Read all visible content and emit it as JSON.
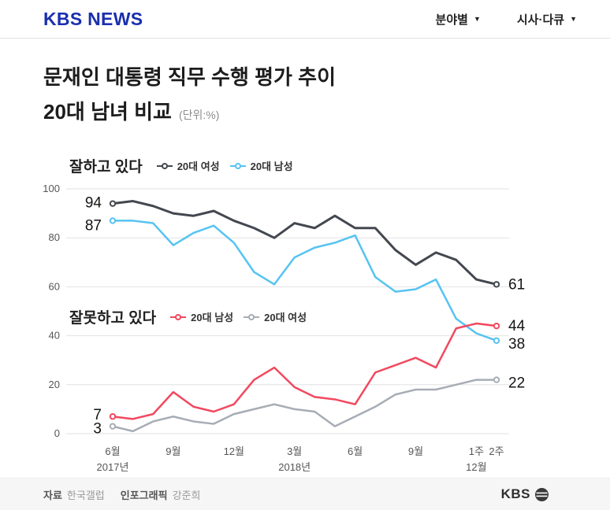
{
  "header": {
    "logo": "KBS NEWS",
    "nav": [
      {
        "label": "분야별"
      },
      {
        "label": "시사·다큐"
      }
    ]
  },
  "icons": {
    "dropdown_arrow": "▼"
  },
  "title": {
    "line1": "문재인 대통령 직무 수행 평가 추이",
    "line2": "20대 남녀 비교",
    "unit": "(단위:%)"
  },
  "chart_data": {
    "type": "line",
    "x_count": 20,
    "ylim": [
      0,
      100
    ],
    "yticks": [
      0,
      20,
      40,
      60,
      80,
      100
    ],
    "xticks": [
      {
        "i": 0,
        "label": "6월"
      },
      {
        "i": 3,
        "label": "9월"
      },
      {
        "i": 6,
        "label": "12월"
      },
      {
        "i": 9,
        "label": "3월"
      },
      {
        "i": 12,
        "label": "6월"
      },
      {
        "i": 15,
        "label": "9월"
      },
      {
        "i": 18,
        "label": "1주"
      },
      {
        "i": 19,
        "label": "2주"
      }
    ],
    "year_labels": [
      {
        "i": 0,
        "label": "2017년"
      },
      {
        "i": 9,
        "label": "2018년"
      },
      {
        "i": 18,
        "label": "12월"
      }
    ],
    "groups": [
      {
        "name": "잘하고 있다",
        "items": [
          {
            "label": "20대 여성",
            "color": "#43474f"
          },
          {
            "label": "20대 남성",
            "color": "#56c3f2"
          }
        ]
      },
      {
        "name": "잘못하고 있다",
        "items": [
          {
            "label": "20대 남성",
            "color": "#f2485e"
          },
          {
            "label": "20대 여성",
            "color": "#a7adb5"
          }
        ]
      }
    ],
    "series": [
      {
        "name": "잘하고 있다 20대 여성",
        "color": "#43474f",
        "values": [
          94,
          95,
          93,
          90,
          89,
          91,
          87,
          84,
          80,
          86,
          84,
          89,
          84,
          84,
          75,
          69,
          74,
          71,
          63,
          61
        ]
      },
      {
        "name": "잘하고 있다 20대 남성",
        "color": "#56c3f2",
        "values": [
          87,
          87,
          86,
          77,
          82,
          85,
          78,
          66,
          61,
          72,
          76,
          78,
          81,
          64,
          58,
          59,
          63,
          47,
          41,
          38
        ]
      },
      {
        "name": "잘못하고 있다 20대 남성",
        "color": "#f2485e",
        "values": [
          7,
          6,
          8,
          17,
          11,
          9,
          12,
          22,
          27,
          19,
          15,
          14,
          12,
          25,
          28,
          31,
          27,
          43,
          45,
          44
        ]
      },
      {
        "name": "잘못하고 있다 20대 여성",
        "color": "#a7adb5",
        "values": [
          3,
          1,
          5,
          7,
          5,
          4,
          8,
          10,
          12,
          10,
          9,
          3,
          7,
          11,
          16,
          18,
          18,
          20,
          22,
          22
        ]
      }
    ],
    "grid": true,
    "legend_position": "inside-left"
  },
  "footer": {
    "source_label": "자료",
    "source": "한국갤럽",
    "credit_label": "인포그래픽",
    "credit": "강준희",
    "logo": "KBS"
  }
}
